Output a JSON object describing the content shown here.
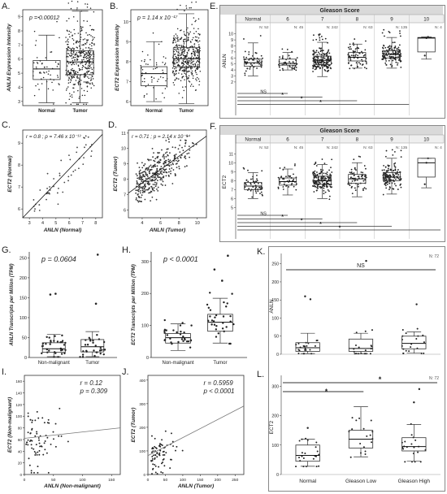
{
  "chart_data": [
    {
      "panel": "A",
      "type": "box",
      "stat": "p = 0.00012",
      "ylabel": "ANLN Expression Intensity",
      "categories": [
        "Normal",
        "Tumor"
      ],
      "yticks": [
        "3",
        "4",
        "5",
        "6",
        "7",
        "8",
        "9"
      ],
      "ylim": [
        2.7,
        9.5
      ],
      "boxes": [
        {
          "min": 2.9,
          "q1": 4.55,
          "median": 5.3,
          "q3": 5.9,
          "max": 7.7,
          "n": 52
        },
        {
          "min": 2.9,
          "q1": 4.9,
          "median": 5.8,
          "q3": 6.6,
          "max": 9.4,
          "n": 500
        }
      ]
    },
    {
      "panel": "B",
      "type": "box",
      "stat": "p = 1.14 x 10⁻¹⁷",
      "ylabel": "ECT2 Expression Intensity",
      "categories": [
        "Normal",
        "Tumor"
      ],
      "yticks": [
        "6",
        "7",
        "8",
        "9",
        "10"
      ],
      "ylim": [
        5.8,
        10.6
      ],
      "boxes": [
        {
          "min": 6.0,
          "q1": 6.8,
          "median": 7.4,
          "q3": 7.75,
          "max": 9.0,
          "n": 52
        },
        {
          "min": 5.9,
          "q1": 7.75,
          "median": 8.15,
          "q3": 8.7,
          "max": 10.4,
          "n": 500
        }
      ]
    },
    {
      "panel": "C",
      "type": "scatter",
      "stat": "r = 0.8 ; p = 7.46 x 10⁻¹³",
      "xlabel": "ANLN (Normal)",
      "ylabel": "ECT2 (Normal)",
      "xticks": [
        "3",
        "4",
        "5",
        "6",
        "7",
        "8"
      ],
      "yticks": [
        "6",
        "7",
        "8",
        "9"
      ],
      "xlim": [
        2.5,
        8.5
      ],
      "ylim": [
        5.6,
        9.6
      ],
      "n": 52,
      "fit": [
        [
          2.5,
          5.6
        ],
        [
          8.5,
          9.4
        ]
      ]
    },
    {
      "panel": "D",
      "type": "scatter",
      "stat": "r = 0.71 ; p = 2.14 x 10⁻⁸⁴",
      "xlabel": "ANLN (Tumor)",
      "ylabel": "ECT2 (Tumor)",
      "xticks": [
        "4",
        "6",
        "8",
        "10"
      ],
      "yticks": [
        "6",
        "7",
        "8",
        "9",
        "10",
        "11"
      ],
      "xlim": [
        2.5,
        11
      ],
      "ylim": [
        5.5,
        11.2
      ],
      "n": 500,
      "fit": [
        [
          2.5,
          7.1
        ],
        [
          11,
          10.8
        ]
      ]
    },
    {
      "panel": "E",
      "type": "box",
      "header": "Gleason Score",
      "ylabel": "ANLN",
      "categories": [
        "Normal",
        "6",
        "7",
        "8",
        "9",
        "10"
      ],
      "counts": [
        "N: 52",
        "N: 45",
        "N: 242",
        "N: 63",
        "N: 135",
        "N: 4"
      ],
      "yticks": [
        "2",
        "3",
        "4",
        "5",
        "6",
        "7",
        "8",
        "9",
        "10"
      ],
      "ylim": [
        0.5,
        10.5
      ],
      "boxes": [
        {
          "min": 3.0,
          "q1": 4.6,
          "median": 5.2,
          "q3": 5.8,
          "max": 8.5
        },
        {
          "min": 4.0,
          "q1": 4.8,
          "median": 5.1,
          "q3": 5.8,
          "max": 6.9
        },
        {
          "min": 2.9,
          "q1": 4.9,
          "median": 5.6,
          "q3": 6.3,
          "max": 8.6
        },
        {
          "min": 4.3,
          "q1": 5.5,
          "median": 6.1,
          "q3": 6.9,
          "max": 8.3
        },
        {
          "min": 4.3,
          "q1": 6.0,
          "median": 6.6,
          "q3": 7.2,
          "max": 9.4
        },
        {
          "min": 5.8,
          "q1": 7.0,
          "median": 9.3,
          "q3": 9.4,
          "max": 9.5
        }
      ],
      "annotations": [
        "NS",
        "*",
        "*",
        "*"
      ]
    },
    {
      "panel": "F",
      "type": "box",
      "header": "Gleason Score",
      "ylabel": "ECT2",
      "categories": [
        "Normal",
        "6",
        "7",
        "8",
        "9",
        "10"
      ],
      "counts": [
        "N: 52",
        "N: 45",
        "N: 242",
        "N: 63",
        "N: 135",
        "N: 4"
      ],
      "yticks": [
        "5",
        "6",
        "7",
        "8",
        "9",
        "10",
        "11"
      ],
      "ylim": [
        4.4,
        11.3
      ],
      "boxes": [
        {
          "min": 6.0,
          "q1": 7.0,
          "median": 7.4,
          "q3": 7.8,
          "max": 8.9
        },
        {
          "min": 6.4,
          "q1": 7.5,
          "median": 7.9,
          "q3": 8.3,
          "max": 9.3
        },
        {
          "min": 6.0,
          "q1": 7.6,
          "median": 8.0,
          "q3": 8.5,
          "max": 9.8
        },
        {
          "min": 6.2,
          "q1": 7.7,
          "median": 8.2,
          "q3": 8.7,
          "max": 10.0
        },
        {
          "min": 6.5,
          "q1": 8.0,
          "median": 8.4,
          "q3": 8.9,
          "max": 10.5
        },
        {
          "min": 7.2,
          "q1": 8.4,
          "median": 10.0,
          "q3": 10.5,
          "max": 10.5
        }
      ],
      "annotations": [
        "NS",
        "*",
        "*",
        "*",
        "*"
      ]
    },
    {
      "panel": "G",
      "type": "box",
      "stat": "p = 0.0604",
      "ylabel": "ANLN Transcripts per Million (TPM)",
      "categories": [
        "Non-malignant",
        "Tumor"
      ],
      "yticks": [
        "0",
        "50",
        "100",
        "150",
        "200",
        "250"
      ],
      "ylim": [
        0,
        265
      ],
      "boxes": [
        {
          "min": 2,
          "q1": 13,
          "median": 22,
          "q3": 37,
          "max": 58
        },
        {
          "min": 2,
          "q1": 14,
          "median": 27,
          "q3": 45,
          "max": 65
        }
      ]
    },
    {
      "panel": "H",
      "type": "box",
      "stat": "p < 0.0001",
      "ylabel": "ECT2 Transcripts per Million (TPM)",
      "categories": [
        "Non-malignant",
        "Tumor"
      ],
      "yticks": [
        "0",
        "100",
        "200",
        "300"
      ],
      "ylim": [
        0,
        330
      ],
      "boxes": [
        {
          "min": 22,
          "q1": 45,
          "median": 62,
          "q3": 75,
          "max": 105
        },
        {
          "min": 45,
          "q1": 82,
          "median": 110,
          "q3": 135,
          "max": 185
        }
      ]
    },
    {
      "panel": "I",
      "type": "scatter",
      "stat_r": "r = 0.12",
      "stat_p": "p = 0.309",
      "xlabel": "ANLN (Non-malignant)",
      "ylabel": "ECT2 (Non-malignant)",
      "xticks": [
        "0",
        "50",
        "100",
        "150"
      ],
      "yticks": [
        "0",
        "20",
        "40",
        "60",
        "80",
        "100",
        "120",
        "140",
        "160"
      ],
      "xlim": [
        0,
        165
      ],
      "ylim": [
        0,
        170
      ],
      "n": 72,
      "fit": [
        [
          0,
          62
        ],
        [
          165,
          80
        ]
      ]
    },
    {
      "panel": "J",
      "type": "scatter",
      "stat_r": "r = 0.5959",
      "stat_p": "p < 0.0001",
      "xlabel": "ANLN (Tumor)",
      "ylabel": "ECT2 (Tumor)",
      "xticks": [
        "0",
        "50",
        "100",
        "150",
        "200",
        "250"
      ],
      "yticks": [
        "0",
        "100",
        "200",
        "300",
        "400"
      ],
      "xlim": [
        0,
        275
      ],
      "ylim": [
        0,
        420
      ],
      "n": 72,
      "fit": [
        [
          0,
          80
        ],
        [
          275,
          290
        ]
      ]
    },
    {
      "panel": "K",
      "type": "box",
      "count": "N: 72",
      "ylabel": "ANLN",
      "categories": [
        "Normal",
        "Gleason Low",
        "Gleason High"
      ],
      "yticks": [
        "0",
        "50",
        "100",
        "150",
        "200",
        "250"
      ],
      "ylim": [
        0,
        265
      ],
      "boxes": [
        {
          "min": 2,
          "q1": 8,
          "median": 18,
          "q3": 32,
          "max": 58
        },
        {
          "min": 2,
          "q1": 8,
          "median": 16,
          "q3": 42,
          "max": 58
        },
        {
          "min": 3,
          "q1": 15,
          "median": 30,
          "q3": 50,
          "max": 62
        }
      ],
      "annotations": [
        "NS"
      ]
    },
    {
      "panel": "L",
      "type": "box",
      "count": "N: 72",
      "ylabel": "ECT2",
      "categories": [
        "Normal",
        "Gleason Low",
        "Gleason High"
      ],
      "yticks": [
        "0",
        "100",
        "200",
        "300"
      ],
      "ylim": [
        0,
        320
      ],
      "boxes": [
        {
          "min": 28,
          "q1": 45,
          "median": 65,
          "q3": 100,
          "max": 120
        },
        {
          "min": 60,
          "q1": 90,
          "median": 120,
          "q3": 150,
          "max": 230
        },
        {
          "min": 45,
          "q1": 80,
          "median": 95,
          "q3": 125,
          "max": 170
        }
      ],
      "annotations": [
        "*",
        "*"
      ]
    }
  ],
  "panel_letters": [
    "A.",
    "B.",
    "C.",
    "D.",
    "E.",
    "F.",
    "G.",
    "H.",
    "I.",
    "J.",
    "K.",
    "L."
  ]
}
